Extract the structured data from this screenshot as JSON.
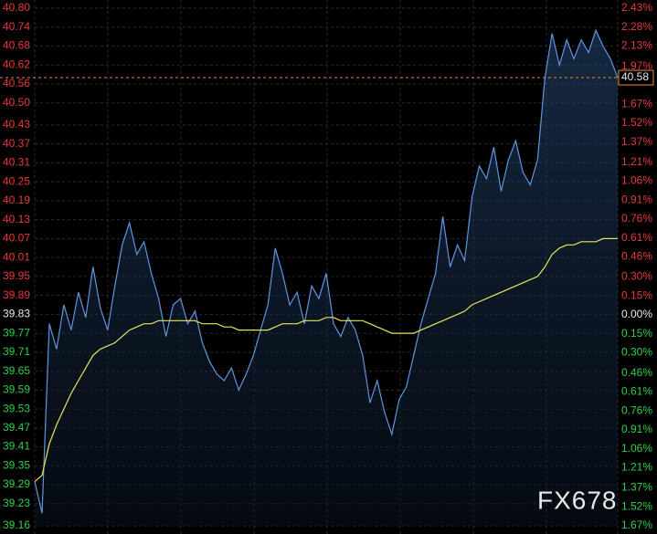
{
  "chart_data": {
    "type": "line",
    "ylim": [
      39.16,
      40.8
    ],
    "yticks": [
      {
        "value": 40.8,
        "label": "40.80"
      },
      40.74,
      40.68,
      40.62,
      40.56,
      {
        "value": 40.5,
        "label": "40.50"
      },
      40.43,
      40.37,
      40.31,
      40.25,
      40.19,
      40.13,
      40.07,
      40.01,
      39.95,
      39.89,
      39.83,
      39.77,
      39.71,
      39.65,
      39.59,
      39.53,
      39.47,
      39.41,
      39.35,
      39.29,
      39.23,
      39.16
    ],
    "y2lim": [
      -1.67,
      2.43
    ],
    "y2ticks": [
      {
        "value": 2.43,
        "label": "2.43%"
      },
      {
        "value": 2.28,
        "label": "2.28%"
      },
      {
        "value": 2.13,
        "label": "2.13%"
      },
      {
        "value": 1.97,
        "label": "1.97%"
      },
      {
        "value": 1.67,
        "label": "1.67%"
      },
      {
        "value": 1.52,
        "label": "1.52%"
      },
      {
        "value": 1.37,
        "label": "1.37%"
      },
      {
        "value": 1.21,
        "label": "1.21%"
      },
      {
        "value": 1.06,
        "label": "1.06%"
      },
      {
        "value": 0.91,
        "label": "0.91%"
      },
      {
        "value": 0.76,
        "label": "0.76%"
      },
      {
        "value": 0.61,
        "label": "0.61%"
      },
      {
        "value": 0.46,
        "label": "0.46%"
      },
      {
        "value": 0.3,
        "label": "0.30%"
      },
      {
        "value": 0.15,
        "label": "0.15%"
      },
      {
        "value": 0,
        "label": "0.00%"
      },
      {
        "value": -0.15,
        "label": "0.15%"
      },
      {
        "value": -0.3,
        "label": "0.30%"
      },
      {
        "value": -0.46,
        "label": "0.46%"
      },
      {
        "value": -0.61,
        "label": "0.61%"
      },
      {
        "value": -0.76,
        "label": "0.76%"
      },
      {
        "value": -0.91,
        "label": "0.91%"
      },
      {
        "value": -1.06,
        "label": "1.06%"
      },
      {
        "value": -1.21,
        "label": "1.21%"
      },
      {
        "value": -1.37,
        "label": "1.37%"
      },
      {
        "value": -1.52,
        "label": "1.52%"
      },
      {
        "value": -1.67,
        "label": "1.67%"
      }
    ],
    "last_price": 40.58,
    "watermark": "FX678",
    "grid": true,
    "up_color": "#e83a3a",
    "down_color": "#2fcf4a",
    "flat_color": "#e8e8e8",
    "series": [
      {
        "color": "#5f95e0",
        "values": [
          39.3,
          39.2,
          39.8,
          39.72,
          39.86,
          39.78,
          39.9,
          39.82,
          39.98,
          39.85,
          39.78,
          39.92,
          40.05,
          40.12,
          40.02,
          40.06,
          39.96,
          39.88,
          39.76,
          39.86,
          39.88,
          39.8,
          39.84,
          39.74,
          39.68,
          39.64,
          39.62,
          39.66,
          39.59,
          39.64,
          39.7,
          39.78,
          39.86,
          40.04,
          39.96,
          39.86,
          39.9,
          39.8,
          39.92,
          39.88,
          39.96,
          39.8,
          39.76,
          39.82,
          39.78,
          39.7,
          39.55,
          39.62,
          39.52,
          39.45,
          39.56,
          39.6,
          39.7,
          39.8,
          39.88,
          39.96,
          40.14,
          39.98,
          40.05,
          40.0,
          40.2,
          40.3,
          40.26,
          40.36,
          40.22,
          40.32,
          40.38,
          40.28,
          40.24,
          40.32,
          40.58,
          40.72,
          40.62,
          40.7,
          40.64,
          40.7,
          40.66,
          40.73,
          40.68,
          40.64,
          40.58
        ]
      },
      {
        "color": "#e6e65a",
        "values": [
          39.3,
          39.32,
          39.42,
          39.48,
          39.53,
          39.58,
          39.62,
          39.66,
          39.7,
          39.72,
          39.73,
          39.74,
          39.76,
          39.78,
          39.79,
          39.8,
          39.8,
          39.81,
          39.81,
          39.81,
          39.81,
          39.81,
          39.81,
          39.8,
          39.8,
          39.8,
          39.79,
          39.79,
          39.78,
          39.78,
          39.78,
          39.78,
          39.78,
          39.79,
          39.8,
          39.8,
          39.8,
          39.81,
          39.81,
          39.81,
          39.82,
          39.82,
          39.81,
          39.81,
          39.81,
          39.81,
          39.8,
          39.79,
          39.78,
          39.77,
          39.77,
          39.77,
          39.77,
          39.78,
          39.79,
          39.8,
          39.81,
          39.82,
          39.83,
          39.84,
          39.86,
          39.87,
          39.88,
          39.89,
          39.9,
          39.91,
          39.92,
          39.93,
          39.94,
          39.95,
          39.98,
          40.02,
          40.04,
          40.05,
          40.05,
          40.06,
          40.06,
          40.06,
          40.07,
          40.07,
          40.07
        ]
      }
    ]
  }
}
